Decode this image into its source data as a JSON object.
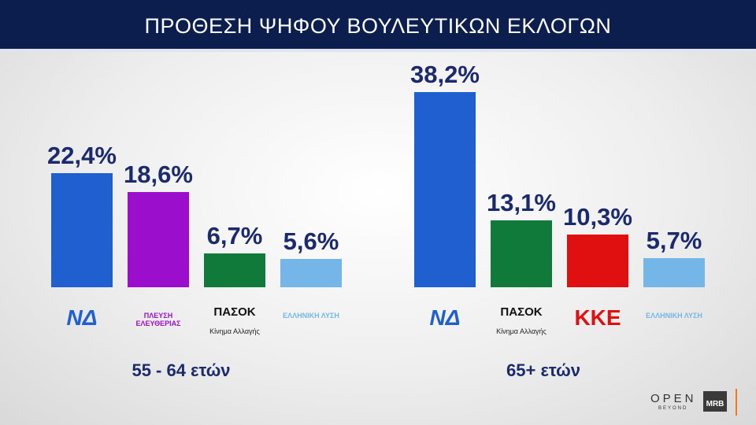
{
  "header": {
    "title": "ΠΡΟΘΕΣΗ ΨΗΦΟΥ ΒΟΥΛΕΥΤΙΚΩΝ ΕΚΛΟΓΩΝ"
  },
  "chart_data": [
    {
      "type": "bar",
      "subtitle": "55 - 64 ετών",
      "categories": [
        "ΝΔ",
        "ΠΛΕΥΣΗ ΕΛΕΥΘΕΡΙΑΣ",
        "ΠΑΣΟΚ",
        "ΕΛΛΗΝΙΚΗ ΛΥΣΗ"
      ],
      "category_notes": [
        null,
        null,
        "Κίνημα Αλλαγής",
        null
      ],
      "values": [
        22.4,
        18.6,
        6.7,
        5.6
      ],
      "value_labels": [
        "22,4%",
        "18,6%",
        "6,7%",
        "5,6%"
      ],
      "colors": [
        "#1f5fcf",
        "#9b0fcc",
        "#0f7a3a",
        "#74b6e8"
      ]
    },
    {
      "type": "bar",
      "subtitle": "65+ ετών",
      "categories": [
        "ΝΔ",
        "ΠΑΣΟΚ",
        "ΚΚΕ",
        "ΕΛΛΗΝΙΚΗ ΛΥΣΗ"
      ],
      "category_notes": [
        null,
        "Κίνημα Αλλαγής",
        null,
        null
      ],
      "values": [
        38.2,
        13.1,
        10.3,
        5.7
      ],
      "value_labels": [
        "38,2%",
        "13,1%",
        "10,3%",
        "5,7%"
      ],
      "colors": [
        "#1f5fcf",
        "#0f7a3a",
        "#e01010",
        "#74b6e8"
      ]
    }
  ],
  "footer": {
    "brand": "OPEN",
    "brand_sub": "BEYOND",
    "pollster": "MRB"
  }
}
